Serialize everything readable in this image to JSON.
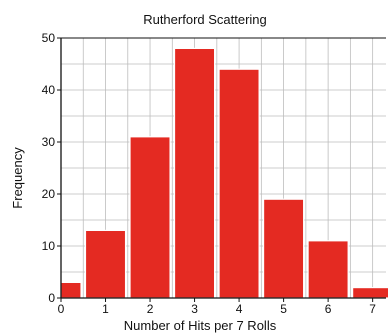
{
  "chart_data": {
    "type": "bar",
    "title": "Rutherford Scattering",
    "xlabel": "Number of Hits per 7 Rolls",
    "ylabel": "Frequency",
    "categories": [
      0,
      1,
      2,
      3,
      4,
      5,
      6,
      7
    ],
    "values": [
      3,
      13,
      31,
      48,
      44,
      19,
      11,
      2
    ],
    "x_ticks": [
      "0",
      "1",
      "2",
      "3",
      "4",
      "5",
      "6",
      "7"
    ],
    "y_ticks": [
      "0",
      "10",
      "20",
      "30",
      "40",
      "50"
    ],
    "xlim": [
      0,
      7.3
    ],
    "ylim": [
      0,
      50
    ],
    "grid": true,
    "colors": {
      "bar": "#e42a22",
      "bar_edge": "#ffffff",
      "grid": "#bdbdbd",
      "axis": "#111111"
    }
  }
}
